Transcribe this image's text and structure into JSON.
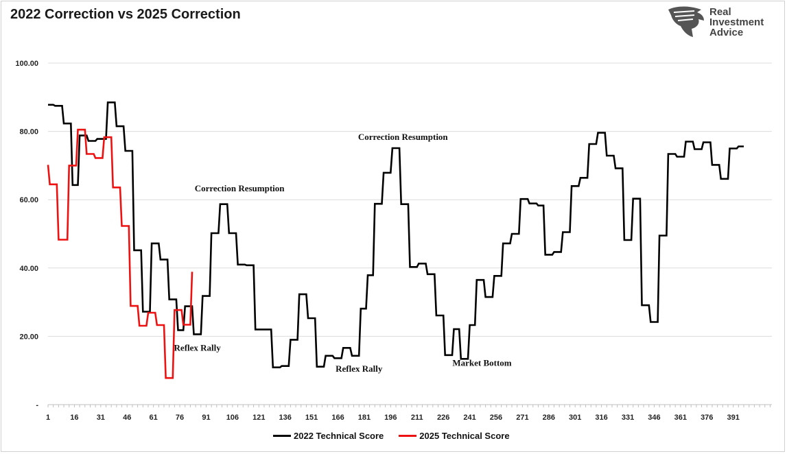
{
  "title": "2022 Correction vs 2025 Correction",
  "logo": {
    "line1": "Real",
    "line2": "Investment",
    "line3": "Advice",
    "icon": "eagle-head-icon"
  },
  "chart_data": {
    "type": "line",
    "title": "2022 Correction vs 2025 Correction",
    "xlabel": "",
    "ylabel": "",
    "xlim": [
      1,
      413
    ],
    "ylim": [
      0,
      100
    ],
    "grid": true,
    "legend_position": "bottom",
    "y_ticks": [
      "-",
      "20.00",
      "40.00",
      "60.00",
      "80.00",
      "100.00"
    ],
    "x_ticks": [
      "1",
      "16",
      "31",
      "46",
      "61",
      "76",
      "91",
      "106",
      "121",
      "136",
      "151",
      "166",
      "181",
      "196",
      "211",
      "226",
      "241",
      "256",
      "271",
      "286",
      "301",
      "316",
      "331",
      "346",
      "361",
      "376",
      "391"
    ],
    "series": [
      {
        "name": "2022 Technical Score",
        "color": "#000000",
        "points": [
          [
            1,
            87.8
          ],
          [
            4,
            87.8
          ],
          [
            5,
            87.5
          ],
          [
            9,
            87.5
          ],
          [
            10,
            82.3
          ],
          [
            14,
            82.3
          ],
          [
            15,
            64.3
          ],
          [
            18,
            64.3
          ],
          [
            19,
            78.8
          ],
          [
            23,
            78.8
          ],
          [
            24,
            77.2
          ],
          [
            28,
            77.2
          ],
          [
            29,
            77.8
          ],
          [
            34,
            77.8
          ],
          [
            35,
            88.5
          ],
          [
            39,
            88.5
          ],
          [
            40,
            81.5
          ],
          [
            44,
            81.5
          ],
          [
            45,
            74.3
          ],
          [
            49,
            74.3
          ],
          [
            50,
            45.2
          ],
          [
            54,
            45.2
          ],
          [
            55,
            27.2
          ],
          [
            59,
            27.2
          ],
          [
            60,
            47.2
          ],
          [
            64,
            47.2
          ],
          [
            65,
            42.5
          ],
          [
            69,
            42.5
          ],
          [
            70,
            30.8
          ],
          [
            74,
            30.8
          ],
          [
            75,
            21.8
          ],
          [
            78,
            21.8
          ],
          [
            79,
            28.8
          ],
          [
            83,
            28.8
          ],
          [
            84,
            20.6
          ],
          [
            88,
            20.6
          ],
          [
            89,
            31.8
          ],
          [
            93,
            31.8
          ],
          [
            94,
            50.2
          ],
          [
            98,
            50.2
          ],
          [
            99,
            58.7
          ],
          [
            103,
            58.7
          ],
          [
            104,
            50.2
          ],
          [
            108,
            50.2
          ],
          [
            109,
            41.0
          ],
          [
            113,
            41.0
          ],
          [
            114,
            40.8
          ],
          [
            118,
            40.8
          ],
          [
            119,
            22.0
          ],
          [
            128,
            22.0
          ],
          [
            129,
            10.9
          ],
          [
            133,
            10.9
          ],
          [
            134,
            11.3
          ],
          [
            138,
            11.3
          ],
          [
            139,
            19.0
          ],
          [
            143,
            19.0
          ],
          [
            144,
            32.3
          ],
          [
            148,
            32.3
          ],
          [
            149,
            25.3
          ],
          [
            153,
            25.3
          ],
          [
            154,
            11.1
          ],
          [
            158,
            11.1
          ],
          [
            159,
            14.3
          ],
          [
            163,
            14.3
          ],
          [
            164,
            13.6
          ],
          [
            168,
            13.6
          ],
          [
            169,
            16.6
          ],
          [
            173,
            16.6
          ],
          [
            174,
            14.3
          ],
          [
            178,
            14.3
          ],
          [
            179,
            28.1
          ],
          [
            182,
            28.1
          ],
          [
            183,
            37.9
          ],
          [
            186,
            37.9
          ],
          [
            187,
            58.8
          ],
          [
            191,
            58.8
          ],
          [
            192,
            67.9
          ],
          [
            196,
            67.9
          ],
          [
            197,
            75.1
          ],
          [
            201,
            75.1
          ],
          [
            202,
            58.7
          ],
          [
            206,
            58.7
          ],
          [
            207,
            40.3
          ],
          [
            211,
            40.3
          ],
          [
            212,
            41.3
          ],
          [
            216,
            41.3
          ],
          [
            217,
            38.2
          ],
          [
            221,
            38.2
          ],
          [
            222,
            26.1
          ],
          [
            226,
            26.1
          ],
          [
            227,
            14.5
          ],
          [
            231,
            14.5
          ],
          [
            232,
            22.1
          ],
          [
            235,
            22.1
          ],
          [
            236,
            13.4
          ],
          [
            240,
            13.4
          ],
          [
            241,
            23.3
          ],
          [
            244,
            23.3
          ],
          [
            245,
            36.5
          ],
          [
            249,
            36.5
          ],
          [
            250,
            31.5
          ],
          [
            254,
            31.5
          ],
          [
            255,
            37.7
          ],
          [
            259,
            37.7
          ],
          [
            260,
            47.2
          ],
          [
            264,
            47.2
          ],
          [
            265,
            50.0
          ],
          [
            269,
            50.0
          ],
          [
            270,
            60.2
          ],
          [
            274,
            60.2
          ],
          [
            275,
            58.9
          ],
          [
            279,
            58.9
          ],
          [
            280,
            58.3
          ],
          [
            283,
            58.3
          ],
          [
            284,
            43.9
          ],
          [
            288,
            43.9
          ],
          [
            289,
            44.7
          ],
          [
            293,
            44.7
          ],
          [
            294,
            50.5
          ],
          [
            298,
            50.5
          ],
          [
            299,
            64.0
          ],
          [
            303,
            64.0
          ],
          [
            304,
            66.4
          ],
          [
            308,
            66.4
          ],
          [
            309,
            76.3
          ],
          [
            313,
            76.3
          ],
          [
            314,
            79.6
          ],
          [
            318,
            79.6
          ],
          [
            319,
            72.9
          ],
          [
            323,
            72.9
          ],
          [
            324,
            69.2
          ],
          [
            328,
            69.2
          ],
          [
            329,
            48.2
          ],
          [
            333,
            48.2
          ],
          [
            334,
            60.3
          ],
          [
            338,
            60.3
          ],
          [
            339,
            29.1
          ],
          [
            343,
            29.1
          ],
          [
            344,
            24.2
          ],
          [
            348,
            24.2
          ],
          [
            349,
            49.5
          ],
          [
            353,
            49.5
          ],
          [
            354,
            73.4
          ],
          [
            358,
            73.4
          ],
          [
            359,
            72.6
          ],
          [
            363,
            72.6
          ],
          [
            364,
            77.0
          ],
          [
            368,
            77.0
          ],
          [
            369,
            74.8
          ],
          [
            373,
            74.8
          ],
          [
            374,
            76.8
          ],
          [
            378,
            76.8
          ],
          [
            379,
            70.2
          ],
          [
            383,
            70.2
          ],
          [
            384,
            66.1
          ],
          [
            388,
            66.1
          ],
          [
            389,
            75.0
          ],
          [
            393,
            75.0
          ],
          [
            394,
            75.6
          ],
          [
            397,
            75.6
          ]
        ]
      },
      {
        "name": "2025 Technical Score",
        "color": "#ee1111",
        "points": [
          [
            1,
            70.2
          ],
          [
            2,
            64.5
          ],
          [
            6,
            64.5
          ],
          [
            7,
            48.3
          ],
          [
            12,
            48.3
          ],
          [
            13,
            70.0
          ],
          [
            17,
            70.0
          ],
          [
            18,
            80.5
          ],
          [
            22,
            80.5
          ],
          [
            23,
            73.4
          ],
          [
            27,
            73.4
          ],
          [
            28,
            72.2
          ],
          [
            32,
            72.2
          ],
          [
            33,
            78.3
          ],
          [
            37,
            78.3
          ],
          [
            38,
            63.6
          ],
          [
            42,
            63.6
          ],
          [
            43,
            52.3
          ],
          [
            47,
            52.3
          ],
          [
            48,
            28.9
          ],
          [
            52,
            28.9
          ],
          [
            53,
            23.1
          ],
          [
            57,
            23.1
          ],
          [
            58,
            26.9
          ],
          [
            62,
            26.9
          ],
          [
            63,
            23.3
          ],
          [
            67,
            23.3
          ],
          [
            68,
            7.8
          ],
          [
            72,
            7.8
          ],
          [
            73,
            27.7
          ],
          [
            77,
            27.7
          ],
          [
            78,
            23.4
          ],
          [
            82,
            23.4
          ],
          [
            83,
            38.9
          ]
        ]
      }
    ],
    "annotations": [
      {
        "text": "Correction Resumption",
        "x": 110,
        "y": 62.5
      },
      {
        "text": "Correction Resumption",
        "x": 203,
        "y": 77.5
      },
      {
        "text": "Reflex Rally",
        "x": 86,
        "y": 15.8
      },
      {
        "text": "Reflex Rally",
        "x": 178,
        "y": 9.6
      },
      {
        "text": "Market Bottom",
        "x": 248,
        "y": 11.3
      }
    ]
  }
}
